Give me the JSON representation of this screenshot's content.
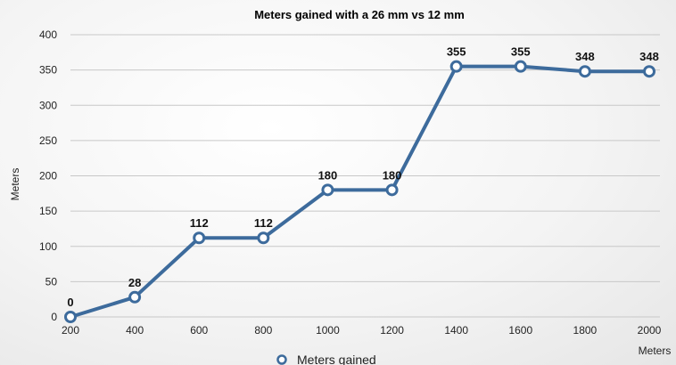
{
  "chart_data": {
    "type": "line",
    "title": "Meters gained with a 26 mm vs 12 mm",
    "xlabel": "Meters",
    "ylabel": "Meters",
    "x": [
      200,
      400,
      600,
      800,
      1000,
      1200,
      1400,
      1600,
      1800,
      2000
    ],
    "series": [
      {
        "name": "Meters gained",
        "values": [
          0,
          28,
          112,
          112,
          180,
          180,
          355,
          355,
          348,
          348
        ]
      }
    ],
    "ylim": [
      0,
      400
    ],
    "yticks": [
      0,
      50,
      100,
      150,
      200,
      250,
      300,
      350,
      400
    ],
    "grid": true,
    "legend": "bottom",
    "data_labels": true,
    "colors": {
      "line": "#3d6b9c",
      "marker_fill": "#ffffff"
    }
  }
}
